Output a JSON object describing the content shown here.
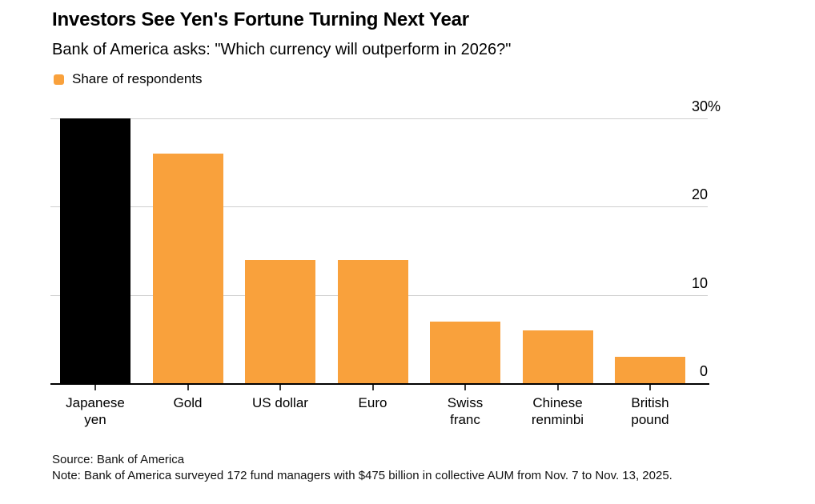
{
  "header": {
    "title": "Investors See Yen's Fortune Turning Next Year",
    "subtitle": "Bank of America asks: \"Which currency will outperform in 2026?\"",
    "legend": {
      "label": "Share of respondents",
      "swatch_color": "#F9A13C"
    }
  },
  "chart_data": {
    "type": "bar",
    "title": "Investors See Yen's Fortune Turning Next Year",
    "subtitle": "Bank of America asks: \"Which currency will outperform in 2026?\"",
    "series_name": "Share of respondents",
    "categories": [
      "Japanese yen",
      "Gold",
      "US dollar",
      "Euro",
      "Swiss franc",
      "Chinese renminbi",
      "British pound"
    ],
    "category_label_lines": [
      [
        "Japanese",
        "yen"
      ],
      [
        "Gold"
      ],
      [
        "US dollar"
      ],
      [
        "Euro"
      ],
      [
        "Swiss",
        "franc"
      ],
      [
        "Chinese",
        "renminbi"
      ],
      [
        "British",
        "pound"
      ]
    ],
    "values": [
      30,
      26,
      14,
      14,
      7,
      6,
      3
    ],
    "unit": "%",
    "bar_colors": [
      "#000000",
      "#F9A13C",
      "#F9A13C",
      "#F9A13C",
      "#F9A13C",
      "#F9A13C",
      "#F9A13C"
    ],
    "highlighted_category": "Japanese yen",
    "ylim": [
      0,
      30
    ],
    "y_ticks": [
      0,
      10,
      20,
      30
    ],
    "y_tick_labels": [
      "0",
      "10",
      "20",
      "30%"
    ],
    "y_axis_side": "right",
    "grid": "horizontal",
    "legend_position": "top-left",
    "xlabel": "",
    "ylabel": ""
  },
  "footer": {
    "source": "Source: Bank of America",
    "note": "Note: Bank of America surveyed 172 fund managers with $475 billion in collective AUM from Nov. 7 to Nov. 13, 2025."
  },
  "colors": {
    "accent_orange": "#F9A13C",
    "highlight_black": "#000000",
    "gridline": "#CFCFCF",
    "axis_line": "#000000",
    "text": "#000000"
  }
}
